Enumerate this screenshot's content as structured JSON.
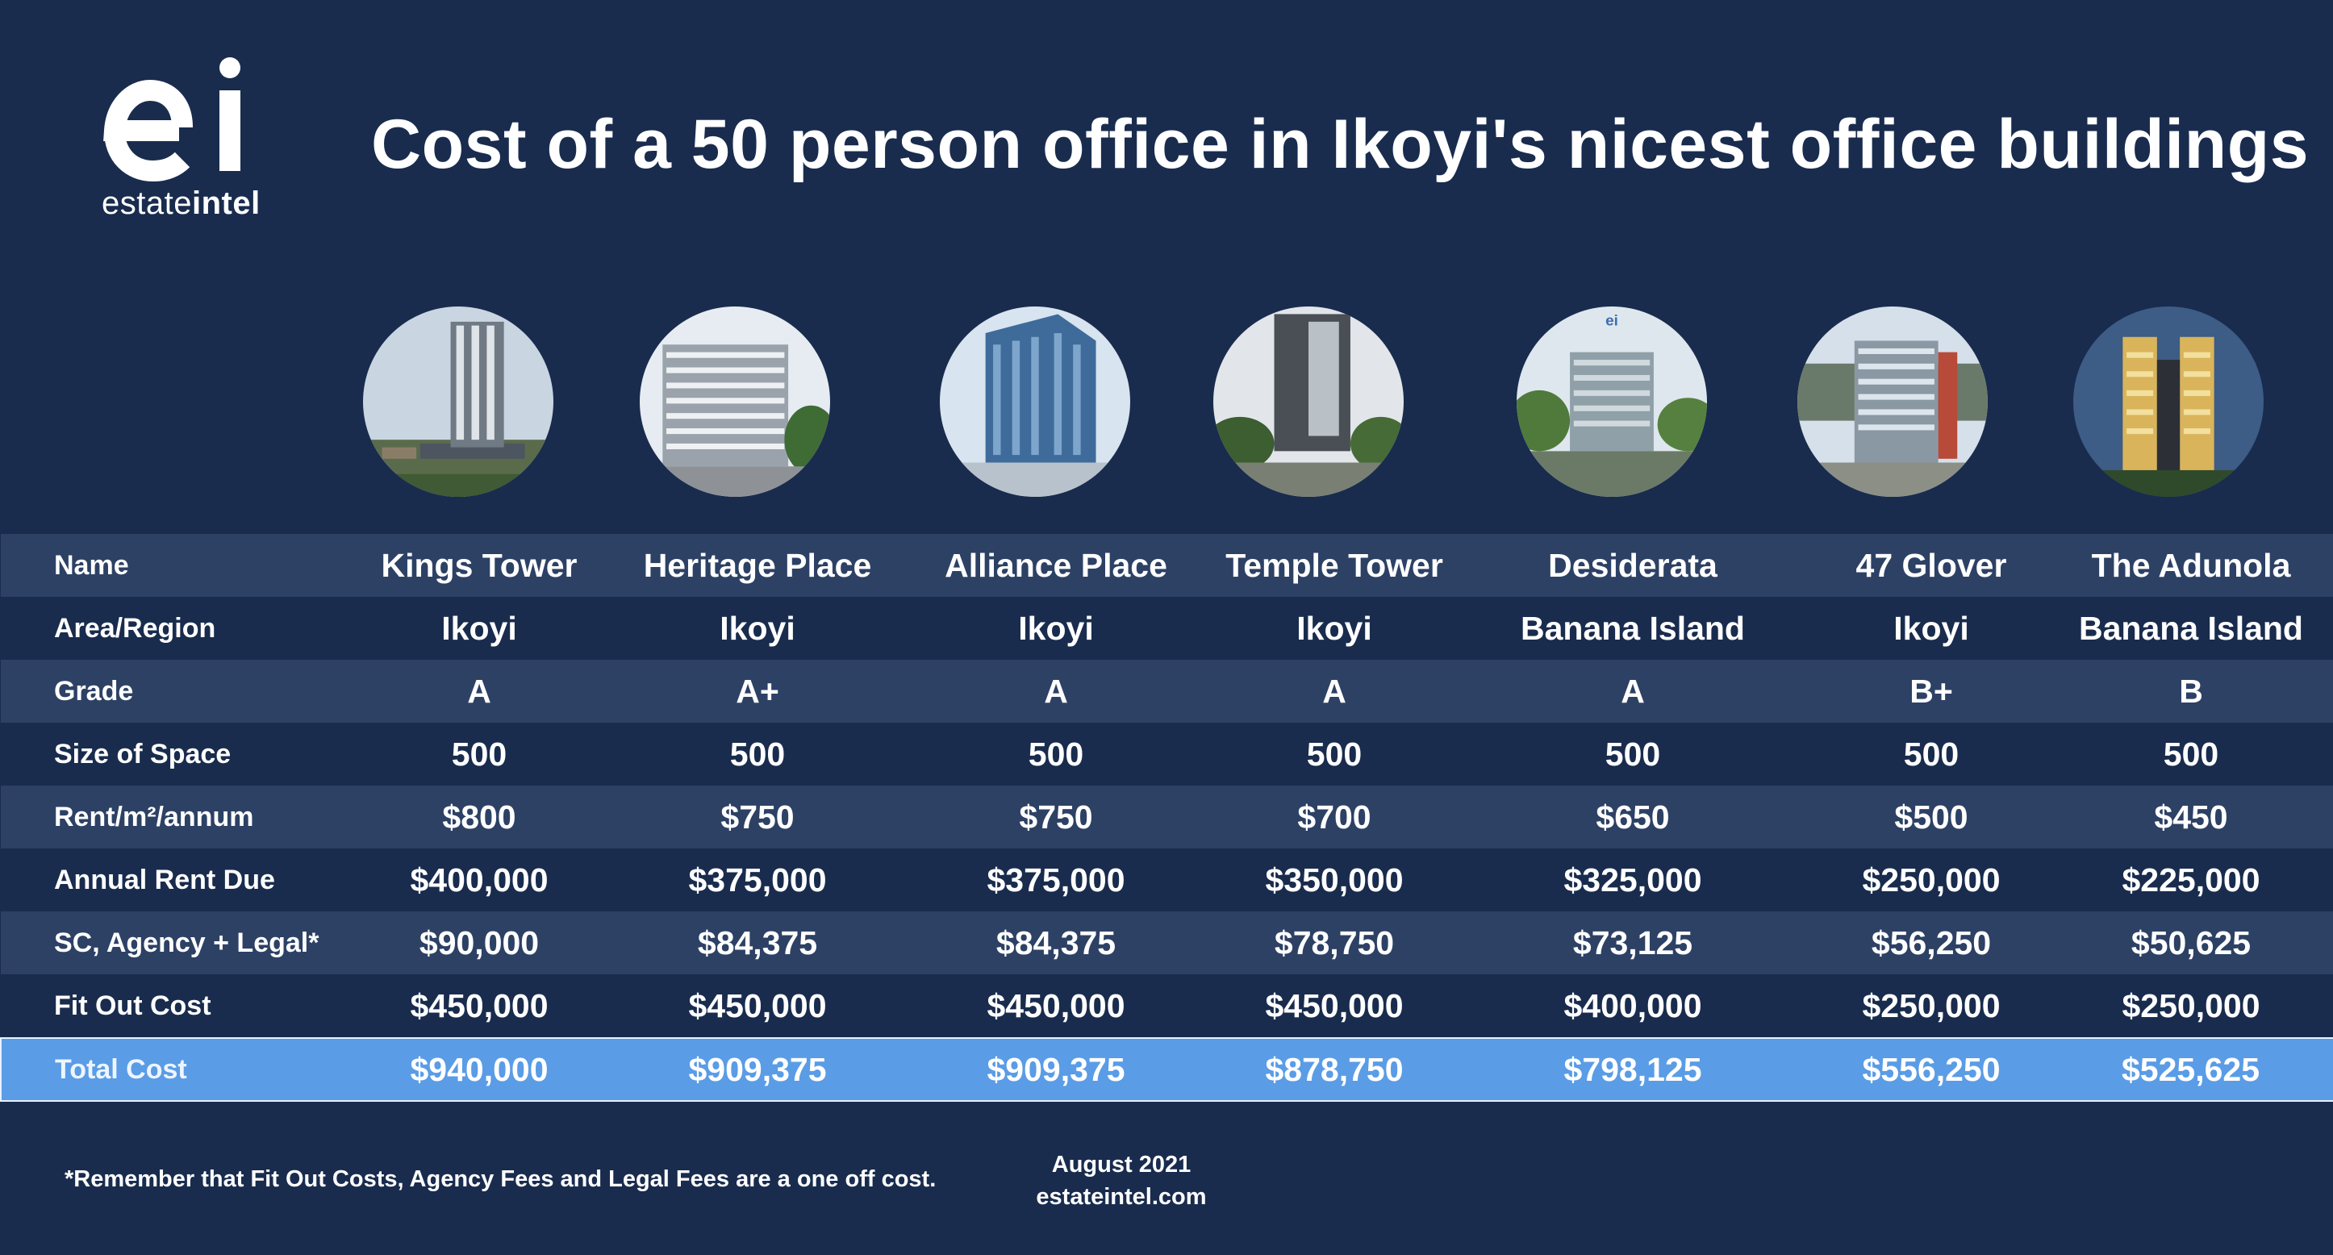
{
  "header": {
    "logo_text_light": "estate",
    "logo_text_bold": "intel",
    "title": "Cost of a 50 person office in Ikoyi's nicest office buildings"
  },
  "photos": [
    {
      "building": "Kings Tower",
      "icon": "kings-tower-photo"
    },
    {
      "building": "Heritage Place",
      "icon": "heritage-place-photo"
    },
    {
      "building": "Alliance Place",
      "icon": "alliance-place-photo"
    },
    {
      "building": "Temple Tower",
      "icon": "temple-tower-photo"
    },
    {
      "building": "Desiderata",
      "icon": "desiderata-photo",
      "badge": "ei"
    },
    {
      "building": "47 Glover",
      "icon": "47-glover-photo"
    },
    {
      "building": "The Adunola",
      "icon": "the-adunola-photo"
    }
  ],
  "table": {
    "rows": [
      {
        "label": "Name",
        "cells": [
          "Kings Tower",
          "Heritage Place",
          "Alliance Place",
          "Temple Tower",
          "Desiderata",
          "47 Glover",
          "The Adunola"
        ]
      },
      {
        "label": "Area/Region",
        "cells": [
          "Ikoyi",
          "Ikoyi",
          "Ikoyi",
          "Ikoyi",
          "Banana Island",
          "Ikoyi",
          "Banana Island"
        ]
      },
      {
        "label": "Grade",
        "cells": [
          "A",
          "A+",
          "A",
          "A",
          "A",
          "B+",
          "B"
        ]
      },
      {
        "label": "Size of Space",
        "cells": [
          "500",
          "500",
          "500",
          "500",
          "500",
          "500",
          "500"
        ]
      },
      {
        "label": "Rent/m²/annum",
        "cells": [
          "$800",
          "$750",
          "$750",
          "$700",
          "$650",
          "$500",
          "$450"
        ]
      },
      {
        "label": "Annual Rent Due",
        "cells": [
          "$400,000",
          "$375,000",
          "$375,000",
          "$350,000",
          "$325,000",
          "$250,000",
          "$225,000"
        ]
      },
      {
        "label": "SC, Agency + Legal*",
        "cells": [
          "$90,000",
          "$84,375",
          "$84,375",
          "$78,750",
          "$73,125",
          "$56,250",
          "$50,625"
        ]
      },
      {
        "label": "Fit Out Cost",
        "cells": [
          "$450,000",
          "$450,000",
          "$450,000",
          "$450,000",
          "$400,000",
          "$250,000",
          "$250,000"
        ]
      },
      {
        "label": "Total Cost",
        "cells": [
          "$940,000",
          "$909,375",
          "$909,375",
          "$878,750",
          "$798,125",
          "$556,250",
          "$525,625"
        ]
      }
    ]
  },
  "footer": {
    "note": "*Remember that Fit Out Costs, Agency Fees and Legal Fees are a one off cost.",
    "date": "August 2021",
    "site": "estateintel.com"
  },
  "colors": {
    "background": "#192c4e",
    "band": "#2d4165",
    "total_highlight": "#5a9ce6"
  }
}
